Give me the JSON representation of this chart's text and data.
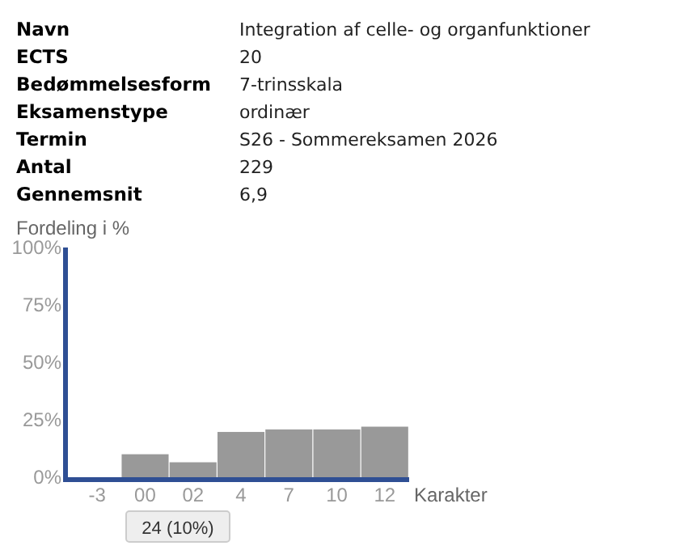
{
  "chart_data": [
    {
      "type": "other",
      "annotations": [
        "Navn",
        "Integration af celle- og organfunktioner",
        "ECTS",
        "20",
        "Bedømmelsesform",
        "7-trinsskala",
        "Eksamenstype",
        "ordinær",
        "Termin",
        "S26 - Sommereksamen 2026",
        "Antal",
        "229",
        "Gennemsnit",
        "6,9"
      ]
    },
    {
      "type": "bar",
      "ylabel": "Fordeling i %",
      "xlabel": "Karakter",
      "categories": [
        "-3",
        "00",
        "02",
        "4",
        "7",
        "10",
        "12"
      ],
      "values": [
        0,
        10,
        6.5,
        19.7,
        20.8,
        20.8,
        22
      ],
      "color": "#999999",
      "ylim": [
        0,
        100
      ],
      "yticks": [
        {
          "value": 0,
          "label": "0%"
        },
        {
          "value": 25,
          "label": "25%"
        },
        {
          "value": 50,
          "label": "50%"
        },
        {
          "value": 75,
          "label": "75%"
        },
        {
          "value": 100,
          "label": "100%"
        }
      ],
      "grid": false,
      "annotations": [
        "24 (10%)"
      ]
    }
  ]
}
